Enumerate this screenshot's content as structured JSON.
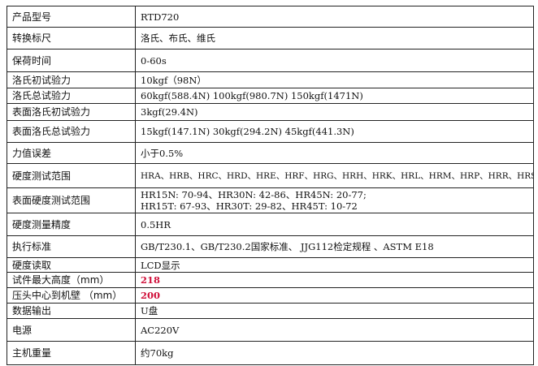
{
  "accent_color": "#d0103a",
  "rows": [
    {
      "label": "产品型号",
      "value": "RTD720"
    },
    {
      "label": "转换标尺",
      "value": "洛氏、布氏、维氏"
    },
    {
      "label": "保荷时间",
      "value": "0-60s"
    },
    {
      "label": "洛氏初试验力",
      "value": "10kgf（98N）"
    },
    {
      "label": "洛氏总试验力",
      "value": "60kgf(588.4N) 100kgf(980.7N) 150kgf(1471N)"
    },
    {
      "label": "表面洛氏初试验力",
      "value": "3kgf(29.4N)"
    },
    {
      "label": "表面洛氏总试验力",
      "value": "15kgf(147.1N) 30kgf(294.2N) 45kgf(441.3N)"
    },
    {
      "label": "力值误差",
      "value": "小于0.5%"
    },
    {
      "label": "硬度测试范围",
      "value": "HRA、HRB、HRC、HRD、HRE、HRF、HRG、HRH、HRK、HRL、HRM、HRP、HRR、HRS、HRV"
    },
    {
      "label": "表面硬度测试范围",
      "value": "HR15N: 70-94、HR30N: 42-86、HR45N: 20-77;",
      "value2": "HR15T: 67-93、HR30T: 29-82、HR45T: 10-72"
    },
    {
      "label": "硬度测量精度",
      "value": "0.5HR"
    },
    {
      "label": "执行标准",
      "value": "GB/T230.1、GB/T230.2国家标准、 JJG112检定规程 、ASTM E18"
    },
    {
      "label": "硬度读取",
      "value": "LCD显示"
    },
    {
      "label": "试件最大高度（mm）",
      "value": "218"
    },
    {
      "label": "压头中心到机壁 （mm）",
      "value": "200"
    },
    {
      "label": "数据输出",
      "value": "U盘"
    },
    {
      "label": "电源",
      "value": "AC220V"
    },
    {
      "label": "主机重量",
      "value": "约70kg"
    }
  ]
}
